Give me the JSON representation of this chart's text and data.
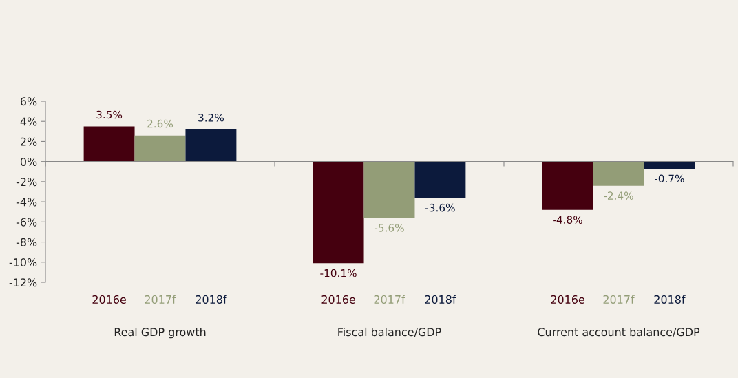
{
  "chart_data": {
    "type": "bar",
    "categories": [
      "Real GDP growth",
      "Fiscal balance/GDP",
      "Current account balance/GDP"
    ],
    "series": [
      {
        "name": "2016e",
        "color": "#45000f",
        "values": [
          3.5,
          -10.1,
          -4.8
        ],
        "value_labels": [
          "3.5%",
          "-10.1%",
          "-4.8%"
        ]
      },
      {
        "name": "2017f",
        "color": "#939d77",
        "values": [
          2.6,
          -5.6,
          -2.4
        ],
        "value_labels": [
          "2.6%",
          "-5.6%",
          "-2.4%"
        ]
      },
      {
        "name": "2018f",
        "color": "#0c1a3c",
        "values": [
          3.2,
          -3.6,
          -0.7
        ],
        "value_labels": [
          "3.2%",
          "-3.6%",
          "-0.7%"
        ]
      }
    ],
    "ylim": [
      -12,
      6
    ],
    "yticks": [
      {
        "value": 6,
        "label": "6%"
      },
      {
        "value": 4,
        "label": "4%"
      },
      {
        "value": 2,
        "label": "2%"
      },
      {
        "value": 0,
        "label": "0%"
      },
      {
        "value": -2,
        "label": "-2%"
      },
      {
        "value": -4,
        "label": "-4%"
      },
      {
        "value": -6,
        "label": "-6%"
      },
      {
        "value": -8,
        "label": "-8%"
      },
      {
        "value": -10,
        "label": "-10%"
      },
      {
        "value": -12,
        "label": "-12%"
      }
    ],
    "legend": false
  }
}
